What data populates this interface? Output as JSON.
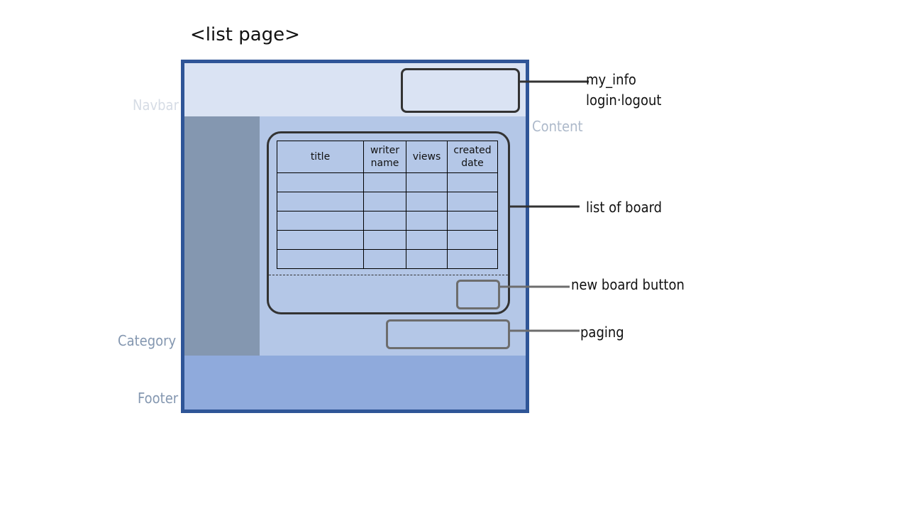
{
  "title": "<list page>",
  "regions": {
    "navbar": "Navbar",
    "content": "Content",
    "category": "Category",
    "footer": "Footer"
  },
  "table": {
    "headers": [
      "title",
      "writer\nname",
      "views",
      "created\ndate"
    ],
    "empty_rows": 5
  },
  "annotations": {
    "my_info": "my_info",
    "login_logout": "login·logout",
    "list_of_board": "list of board",
    "new_board_button": "new board button",
    "paging": "paging"
  },
  "colors": {
    "frame_border": "#2f5597",
    "navbar": "#dae3f3",
    "category": "#8497b0",
    "content": "#b4c7e7",
    "footer": "#8faadc"
  }
}
